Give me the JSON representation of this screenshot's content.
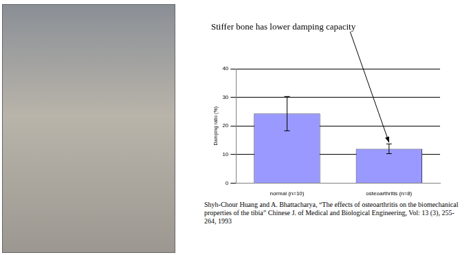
{
  "chart_data": {
    "type": "bar",
    "categories": [
      "normal (n=10)",
      "osteoarthritis (n=8)"
    ],
    "values": [
      24.3,
      12.0
    ],
    "errors": [
      6.0,
      1.7
    ],
    "color": "#9999ff",
    "y_label": "Damping ratio (%)",
    "ylim": [
      0,
      40
    ],
    "yticks": [
      0,
      10,
      20,
      30,
      40
    ],
    "grid": true,
    "annotation": "Stiffer bone has lower damping capacity",
    "caption": "Shyh-Chour Huang and A. Bhattacharya, “The effects of osteoarthritis on the biomechanical properties of the tibia” Chinese J. of Medical and Biological Engineering, Vol: 13 (3), 255-264, 1993"
  }
}
